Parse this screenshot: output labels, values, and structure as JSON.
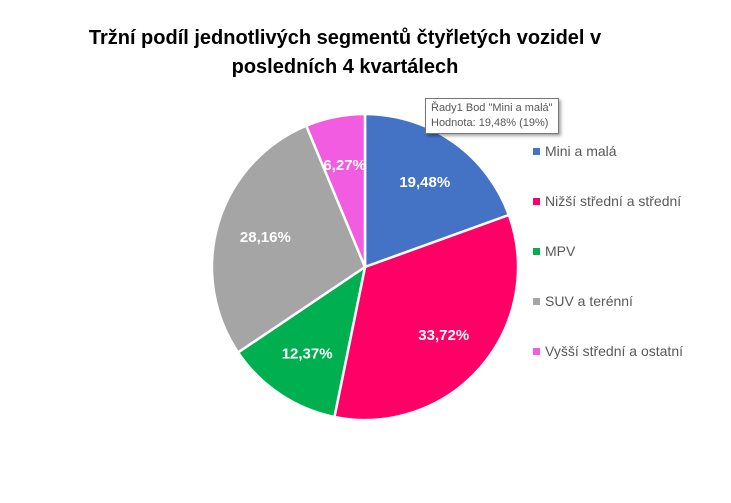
{
  "chart_data": {
    "type": "pie",
    "title": "Tržní podíl jednotlivých segmentů čtyřletých vozidel v posledních 4 kvartálech",
    "title_lines": [
      "Tržní podíl jednotlivých segmentů čtyřletých vozidel v",
      "posledních 4 kvartálech"
    ],
    "categories": [
      "Mini a malá",
      "Nižší střední a střední",
      "MPV",
      "SUV a terénní",
      "Vyšší střední a ostatní"
    ],
    "values": [
      19.48,
      33.72,
      12.37,
      28.16,
      6.27
    ],
    "labels": [
      "19,48%",
      "33,72%",
      "12,37%",
      "28,16%",
      "6,27%"
    ],
    "colors": [
      "#4472C4",
      "#FF0066",
      "#00B050",
      "#A5A5A5",
      "#F25CE0"
    ],
    "start_angle": "12 o'clock, clockwise",
    "legend_position": "right"
  },
  "tooltip": {
    "line1": "Řady1 Bod \"Mini a malá\"",
    "line2": "Hodnota: 19,48% (19%)"
  }
}
